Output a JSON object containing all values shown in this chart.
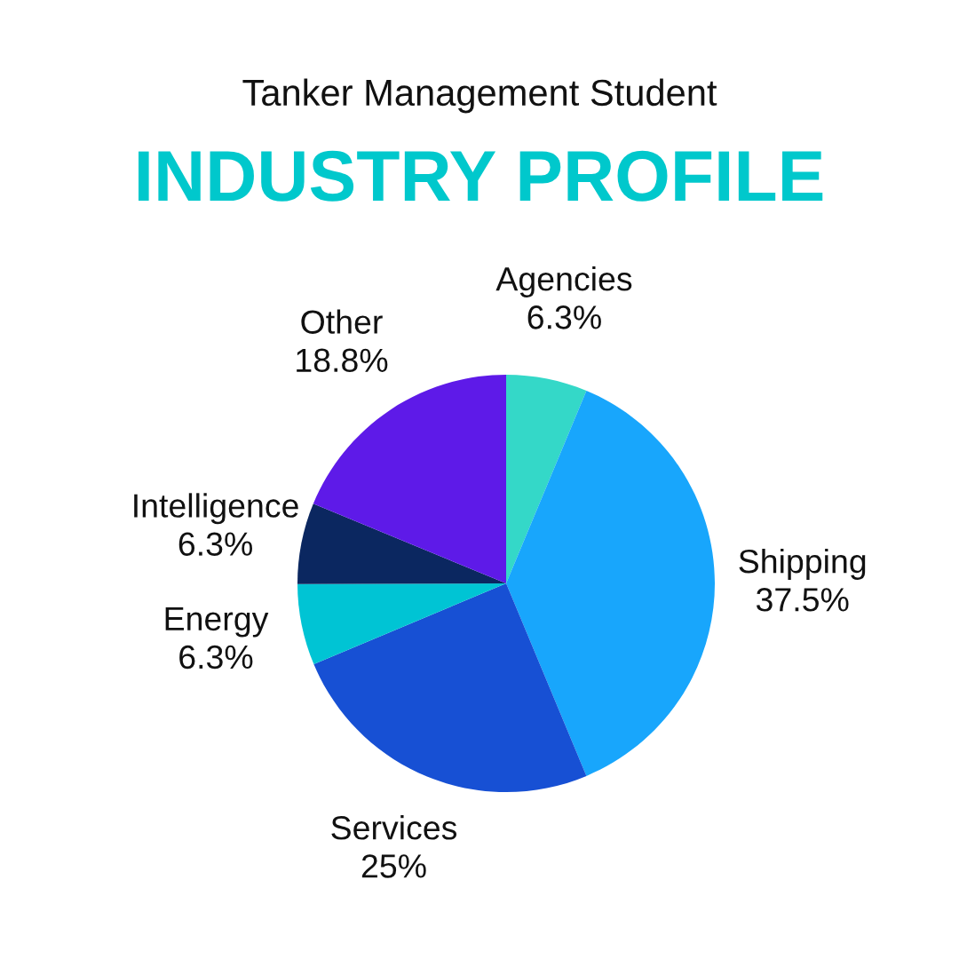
{
  "chart_data": {
    "type": "pie",
    "subtitle": "Tanker Management Student",
    "title": "INDUSTRY PROFILE",
    "categories": [
      "Agencies",
      "Shipping",
      "Services",
      "Energy",
      "Intelligence",
      "Other"
    ],
    "values": [
      6.3,
      37.5,
      25,
      6.3,
      6.3,
      18.8
    ],
    "value_labels": [
      "6.3%",
      "37.5%",
      "25%",
      "6.3%",
      "6.3%",
      "18.8%"
    ],
    "colors": [
      "#34d8c8",
      "#18a6fc",
      "#1750d4",
      "#00c4d4",
      "#0b2760",
      "#5e1ae8"
    ],
    "legend": false
  }
}
